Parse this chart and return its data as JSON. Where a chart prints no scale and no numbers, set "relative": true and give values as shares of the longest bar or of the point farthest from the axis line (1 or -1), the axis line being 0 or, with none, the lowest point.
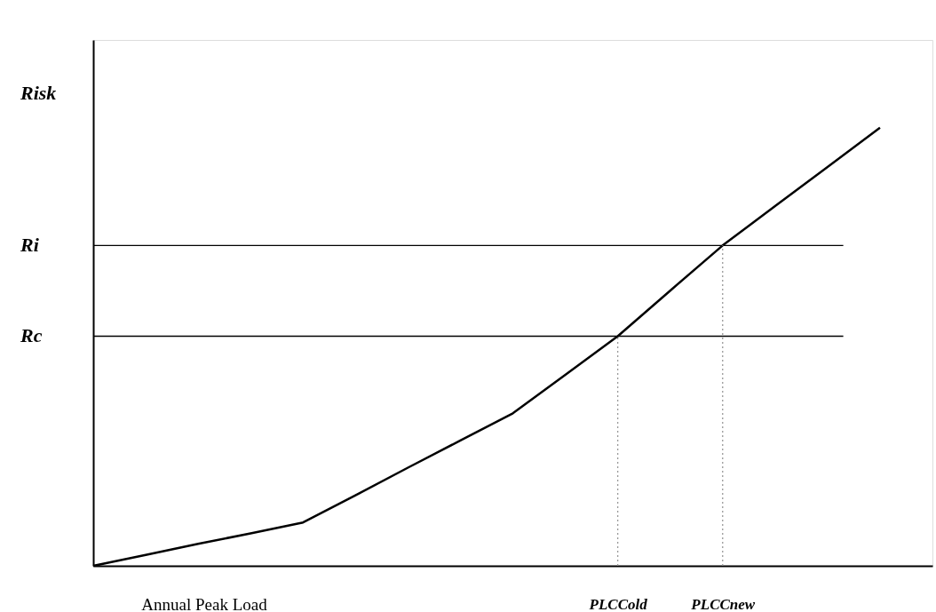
{
  "chart_data": {
    "type": "line",
    "relative": true,
    "xlabel": "Annual Peak Load",
    "ylabel": "Risk",
    "categories": [
      null,
      null,
      null,
      null,
      null,
      null,
      null,
      null,
      null,
      null,
      "PLCCold",
      null,
      "PLCCnew",
      null,
      null,
      null,
      null
    ],
    "series": [
      {
        "color": "#000000",
        "values": [
          0,
          0.025,
          0.05,
          0.074,
          0.099,
          0.161,
          0.224,
          0.286,
          0.348,
          0.436,
          0.524,
          0.628,
          0.731,
          0.821,
          0.91,
          1.0,
          null
        ]
      }
    ],
    "ref_lines": [
      {
        "axis": "y",
        "value": 0.731,
        "label": "Ri",
        "color": "#000000",
        "line_style": "solid"
      },
      {
        "axis": "y",
        "value": 0.524,
        "label": "Rc",
        "color": "#000000",
        "line_style": "solid"
      },
      {
        "axis": "x",
        "value": "PLCCold",
        "color": "#999999",
        "line_style": "dotted"
      },
      {
        "axis": "x",
        "value": "PLCCnew",
        "color": "#999999",
        "line_style": "dotted"
      }
    ],
    "grid": false,
    "marker": "none",
    "line_style": "solid"
  }
}
